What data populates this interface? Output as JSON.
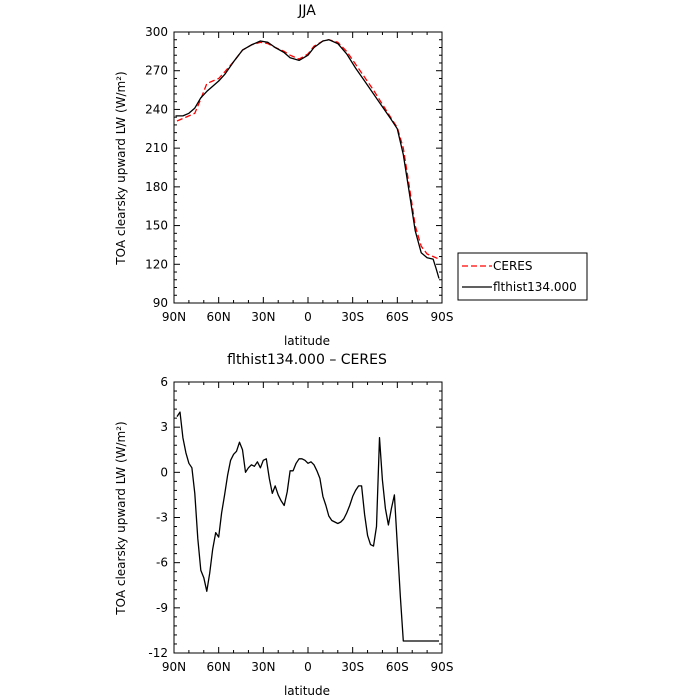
{
  "chart_data": [
    {
      "type": "line",
      "title": "JJA",
      "xlabel": "latitude",
      "ylabel": "TOA clearsky upward LW (W/m²)",
      "xlim": [
        90,
        -90
      ],
      "ylim": [
        90,
        300
      ],
      "xticks": [
        {
          "value": 90,
          "label": "90N"
        },
        {
          "value": 60,
          "label": "60N"
        },
        {
          "value": 30,
          "label": "30N"
        },
        {
          "value": 0,
          "label": "0"
        },
        {
          "value": -30,
          "label": "30S"
        },
        {
          "value": -60,
          "label": "60S"
        },
        {
          "value": -90,
          "label": "90S"
        }
      ],
      "yticks": [
        90,
        120,
        150,
        180,
        210,
        240,
        270,
        300
      ],
      "legend_position": "right",
      "series": [
        {
          "name": "CERES",
          "color": "#ff0000",
          "dash": "dashed",
          "x": [
            88,
            84,
            80,
            76,
            72,
            68,
            64,
            60,
            56,
            50,
            44,
            38,
            32,
            27,
            22,
            16,
            12,
            6,
            0,
            -4,
            -10,
            -14,
            -20,
            -26,
            -32,
            -38,
            -44,
            -50,
            -56,
            -60,
            -64,
            -68,
            -72,
            -76,
            -80,
            -84,
            -88
          ],
          "y": [
            231,
            233,
            235,
            237,
            248,
            260,
            262,
            264,
            269,
            277,
            286,
            290,
            292,
            291,
            288,
            285,
            282,
            279,
            283,
            289,
            293,
            294,
            292,
            285,
            275,
            265,
            255,
            244,
            233,
            226,
            210,
            181,
            150,
            134,
            128,
            126,
            124
          ]
        },
        {
          "name": "flthist134.000",
          "color": "#000000",
          "dash": "solid",
          "x": [
            89,
            84,
            80,
            76,
            72,
            68,
            64,
            60,
            56,
            50,
            44,
            38,
            32,
            27,
            22,
            16,
            12,
            6,
            0,
            -4,
            -10,
            -14,
            -20,
            -26,
            -32,
            -38,
            -44,
            -50,
            -56,
            -60,
            -64,
            -68,
            -72,
            -76,
            -80,
            -84,
            -86,
            -88
          ],
          "y": [
            235,
            235,
            237,
            241,
            249,
            254,
            258,
            262,
            267,
            277,
            286,
            290,
            293,
            292,
            288,
            284,
            280,
            278,
            282,
            288,
            293,
            294,
            291,
            283,
            272,
            262,
            252,
            242,
            232,
            225,
            205,
            176,
            146,
            129,
            125,
            124,
            117,
            109
          ]
        }
      ]
    },
    {
      "type": "line",
      "title": "flthist134.000 – CERES",
      "xlabel": "latitude",
      "ylabel": "TOA clearsky upward LW (W/m²)",
      "xlim": [
        90,
        -90
      ],
      "ylim": [
        -12,
        6
      ],
      "xticks": [
        {
          "value": 90,
          "label": "90N"
        },
        {
          "value": 60,
          "label": "60N"
        },
        {
          "value": 30,
          "label": "30N"
        },
        {
          "value": 0,
          "label": "0"
        },
        {
          "value": -30,
          "label": "30S"
        },
        {
          "value": -60,
          "label": "60S"
        },
        {
          "value": -90,
          "label": "90S"
        }
      ],
      "yticks": [
        6,
        3,
        0,
        -3,
        -6,
        -9,
        -12
      ],
      "series": [
        {
          "color": "#000000",
          "dash": "solid",
          "x": [
            88,
            86,
            84,
            82,
            80,
            78,
            76,
            74,
            72,
            70,
            68,
            66,
            64,
            62,
            60,
            58,
            56,
            54,
            52,
            50,
            48,
            46,
            44,
            42,
            40,
            38,
            36,
            34,
            32,
            30,
            28,
            26,
            24,
            22,
            20,
            18,
            16,
            14,
            12,
            10,
            8,
            6,
            4,
            2,
            0,
            -2,
            -4,
            -6,
            -8,
            -10,
            -12,
            -14,
            -16,
            -18,
            -20,
            -22,
            -24,
            -26,
            -28,
            -30,
            -32,
            -34,
            -36,
            -38,
            -40,
            -42,
            -44,
            -46,
            -48,
            -50,
            -52,
            -54,
            -56,
            -58,
            -60,
            -62,
            -64,
            -66,
            -68,
            -70,
            -72,
            -74,
            -76,
            -78,
            -80,
            -82,
            -84,
            -86,
            -88
          ],
          "y": [
            3.7,
            4.0,
            2.3,
            1.3,
            0.6,
            0.3,
            -1.4,
            -4.4,
            -6.5,
            -7.0,
            -7.9,
            -6.7,
            -5.1,
            -4.0,
            -4.3,
            -2.7,
            -1.5,
            -0.2,
            0.8,
            1.2,
            1.4,
            2.0,
            1.5,
            0.0,
            0.3,
            0.5,
            0.4,
            0.7,
            0.3,
            0.8,
            0.9,
            -0.4,
            -1.4,
            -0.9,
            -1.5,
            -1.9,
            -2.2,
            -1.3,
            0.1,
            0.1,
            0.6,
            0.9,
            0.9,
            0.8,
            0.6,
            0.7,
            0.5,
            0.1,
            -0.4,
            -1.6,
            -2.2,
            -2.9,
            -3.2,
            -3.3,
            -3.4,
            -3.3,
            -3.1,
            -2.7,
            -2.2,
            -1.6,
            -1.2,
            -0.9,
            -0.9,
            -2.8,
            -4.2,
            -4.8,
            -4.9,
            -3.6,
            2.3,
            -0.5,
            -2.4,
            -3.5,
            -2.4,
            -1.5,
            -4.8,
            -8.2,
            -11.2,
            -11.2,
            -11.2,
            -11.2,
            -11.2,
            -11.2,
            -11.2,
            -11.2,
            -11.2,
            -11.2,
            -11.2,
            -11.2,
            -11.2
          ]
        }
      ]
    }
  ]
}
